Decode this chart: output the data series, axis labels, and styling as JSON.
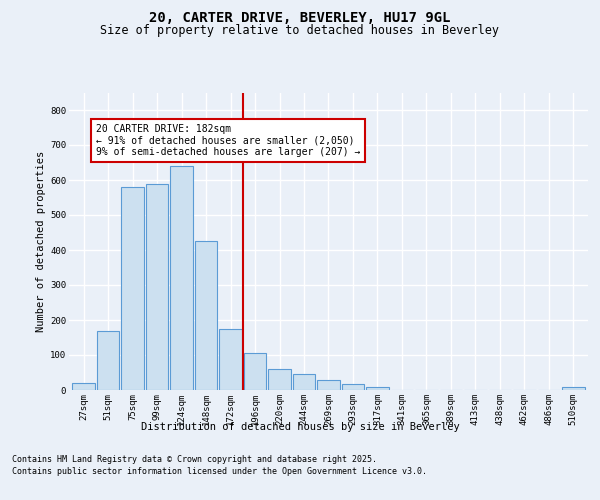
{
  "title": "20, CARTER DRIVE, BEVERLEY, HU17 9GL",
  "subtitle": "Size of property relative to detached houses in Beverley",
  "xlabel": "Distribution of detached houses by size in Beverley",
  "ylabel": "Number of detached properties",
  "footer_line1": "Contains HM Land Registry data © Crown copyright and database right 2025.",
  "footer_line2": "Contains public sector information licensed under the Open Government Licence v3.0.",
  "bin_labels": [
    "27sqm",
    "51sqm",
    "75sqm",
    "99sqm",
    "124sqm",
    "148sqm",
    "172sqm",
    "196sqm",
    "220sqm",
    "244sqm",
    "269sqm",
    "293sqm",
    "317sqm",
    "341sqm",
    "365sqm",
    "389sqm",
    "413sqm",
    "438sqm",
    "462sqm",
    "486sqm",
    "510sqm"
  ],
  "bar_values": [
    20,
    170,
    580,
    590,
    640,
    425,
    175,
    105,
    60,
    45,
    30,
    18,
    8,
    0,
    0,
    0,
    0,
    0,
    0,
    0,
    8
  ],
  "bar_color": "#cce0f0",
  "bar_edge_color": "#5b9bd5",
  "vline_position": 7.0,
  "vline_color": "#cc0000",
  "annotation_text": "20 CARTER DRIVE: 182sqm\n← 91% of detached houses are smaller (2,050)\n9% of semi-detached houses are larger (207) →",
  "annotation_box_color": "#ffffff",
  "annotation_box_edge": "#cc0000",
  "ylim": [
    0,
    850
  ],
  "yticks": [
    0,
    100,
    200,
    300,
    400,
    500,
    600,
    700,
    800
  ],
  "bg_color": "#eaf0f8",
  "plot_bg_color": "#eaf0f8",
  "grid_color": "#ffffff",
  "title_fontsize": 10,
  "subtitle_fontsize": 8.5,
  "axis_label_fontsize": 7.5,
  "tick_fontsize": 6.5,
  "annotation_fontsize": 7,
  "footer_fontsize": 6
}
